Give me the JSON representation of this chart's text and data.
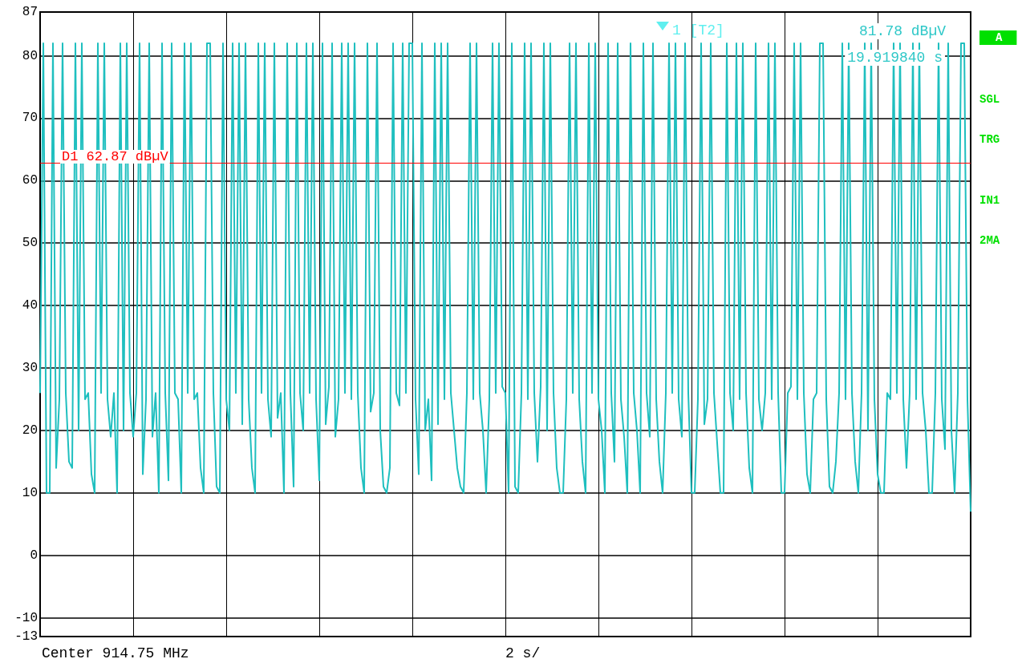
{
  "chart_data": {
    "type": "line",
    "categories": [
      null,
      null,
      null,
      null,
      null,
      null,
      null,
      null,
      null,
      null,
      null,
      null,
      null,
      null,
      null,
      null,
      null,
      null,
      null,
      null,
      null,
      null,
      null,
      null,
      null,
      null,
      null,
      null,
      null,
      null,
      null,
      null,
      null,
      null,
      null,
      null,
      null,
      null,
      null,
      null,
      null,
      null,
      null,
      null,
      null,
      null,
      null,
      null,
      null,
      null,
      null,
      null,
      null,
      null,
      null,
      null,
      null,
      null,
      null,
      null,
      null,
      null,
      null,
      null,
      null,
      null,
      null,
      null,
      null,
      null,
      null,
      null,
      null,
      null,
      null,
      null,
      null,
      null,
      null,
      null,
      null,
      null,
      null,
      null,
      null,
      null,
      null,
      null,
      null,
      null,
      null,
      null,
      null,
      null,
      null,
      null,
      null,
      null,
      null,
      null,
      null,
      null,
      null,
      null,
      null,
      null,
      null,
      null,
      null,
      null,
      null,
      null,
      null,
      null,
      null,
      null,
      null,
      null,
      null,
      null,
      null,
      null,
      null,
      null,
      null,
      null,
      null,
      null,
      null,
      null,
      null,
      null,
      null,
      null,
      null,
      null,
      null,
      null,
      null,
      null,
      null,
      null,
      null,
      null,
      null,
      null,
      null,
      null,
      null,
      null,
      null,
      null,
      null,
      null,
      null,
      null,
      null,
      null,
      null,
      null,
      null,
      null,
      null,
      null,
      null,
      null,
      null,
      null,
      null,
      null,
      null,
      null,
      null,
      null,
      null,
      null,
      null,
      null,
      null,
      null,
      null,
      null,
      null,
      null,
      null,
      null,
      null,
      null,
      null,
      null,
      null,
      null,
      null,
      null,
      null,
      null,
      null,
      null,
      null,
      null,
      null,
      null,
      null,
      null,
      null,
      null,
      null,
      null,
      null,
      null,
      null,
      null,
      null,
      null,
      null,
      null,
      null,
      null,
      null,
      null,
      null,
      null,
      null,
      null,
      null,
      null,
      null,
      null,
      null,
      null,
      null,
      null,
      null,
      null,
      null,
      null,
      null,
      null,
      null,
      null,
      null,
      null,
      null,
      null,
      null,
      null,
      null,
      null,
      null,
      null,
      null,
      null,
      null,
      null,
      null,
      null,
      null,
      null,
      null,
      null,
      null,
      null,
      null,
      null,
      null,
      null,
      null,
      null,
      null,
      null,
      null,
      null,
      null,
      null,
      null,
      null,
      null,
      null,
      null,
      null,
      null,
      null,
      null,
      null,
      null,
      null,
      null,
      null,
      null,
      null,
      null
    ],
    "series": [
      {
        "color": "#1fbfbf",
        "values": [
          26,
          82,
          10,
          10,
          82,
          14,
          25,
          82,
          26,
          15,
          14,
          82,
          20,
          82,
          25,
          26,
          13,
          10,
          82,
          26,
          82,
          25,
          19,
          26,
          10,
          82,
          20,
          82,
          26,
          19,
          26,
          82,
          13,
          25,
          82,
          19,
          26,
          10,
          82,
          26,
          12,
          82,
          26,
          25,
          10,
          82,
          26,
          82,
          25,
          26,
          14,
          10,
          82,
          82,
          26,
          11,
          10,
          82,
          25,
          20,
          82,
          26,
          82,
          21,
          82,
          25,
          14,
          10,
          82,
          26,
          82,
          25,
          19,
          82,
          22,
          26,
          10,
          82,
          26,
          11,
          82,
          26,
          20,
          82,
          26,
          82,
          25,
          12,
          82,
          21,
          27,
          82,
          19,
          25,
          82,
          26,
          82,
          25,
          82,
          26,
          14,
          10,
          82,
          23,
          26,
          82,
          20,
          11,
          10,
          14,
          82,
          26,
          24,
          82,
          26,
          82,
          82,
          25,
          13,
          82,
          20,
          25,
          12,
          82,
          21,
          82,
          25,
          82,
          26,
          20,
          14,
          11,
          10,
          26,
          82,
          25,
          82,
          26,
          20,
          10,
          25,
          82,
          26,
          82,
          27,
          26,
          10,
          82,
          11,
          10,
          26,
          82,
          25,
          82,
          26,
          15,
          27,
          82,
          20,
          82,
          26,
          14,
          10,
          10,
          25,
          82,
          26,
          82,
          25,
          15,
          10,
          82,
          26,
          82,
          25,
          20,
          10,
          82,
          26,
          15,
          82,
          25,
          19,
          10,
          82,
          26,
          20,
          10,
          82,
          26,
          19,
          82,
          25,
          15,
          10,
          26,
          82,
          26,
          82,
          25,
          19,
          82,
          26,
          10,
          10,
          25,
          82,
          21,
          25,
          82,
          26,
          18,
          10,
          10,
          82,
          26,
          20,
          82,
          25,
          82,
          26,
          14,
          10,
          82,
          25,
          20,
          26,
          82,
          25,
          82,
          26,
          10,
          10,
          26,
          27,
          82,
          25,
          82,
          26,
          13,
          10,
          25,
          26,
          82,
          82,
          25,
          11,
          10,
          15,
          26,
          82,
          25,
          82,
          26,
          15,
          10,
          26,
          82,
          20,
          82,
          25,
          13,
          10,
          10,
          26,
          25,
          82,
          26,
          82,
          25,
          14,
          26,
          82,
          25,
          82,
          26,
          20,
          10,
          10,
          26,
          82,
          25,
          17,
          82,
          20,
          10,
          26,
          82,
          82,
          25,
          7
        ]
      }
    ],
    "ylim": [
      -13,
      87
    ],
    "yticks": [
      -13,
      -10,
      0,
      10,
      20,
      30,
      40,
      50,
      60,
      70,
      80,
      87
    ],
    "grid": true,
    "tick_labels": "y",
    "ref_lines": [
      {
        "axis": "y",
        "value": 62.87,
        "label": "D1 62.87 dBµV",
        "color": "#ff0000"
      }
    ],
    "annotations": [
      "Center 914.75 MHz",
      "2 s/",
      "1 [T2]",
      "81.78 dBµV",
      "19.919840 s",
      "A",
      "SGL",
      "TRG",
      "IN1",
      "2MA"
    ]
  }
}
